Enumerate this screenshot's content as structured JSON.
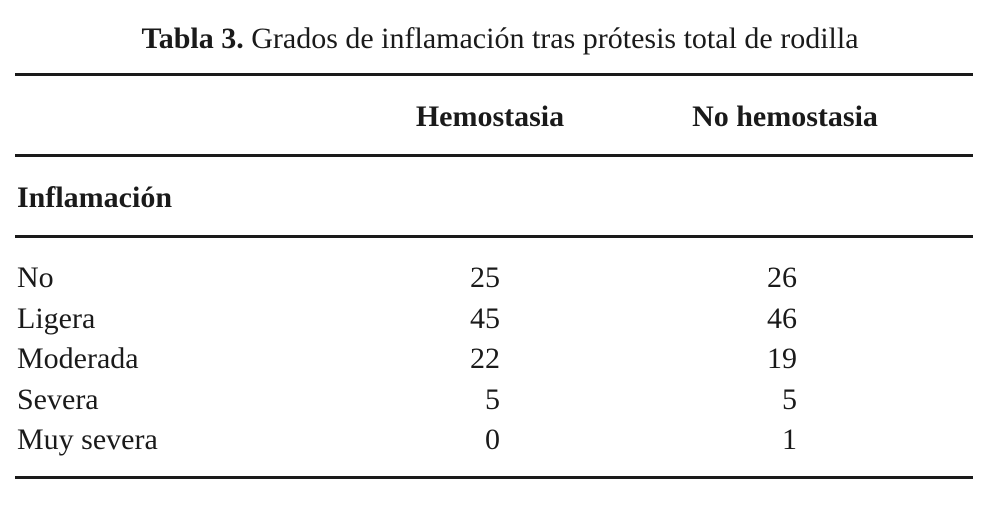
{
  "title": {
    "label": "Tabla 3.",
    "text": "Grados de inflamación tras prótesis total de rodilla"
  },
  "table": {
    "columns": [
      "Hemostasia",
      "No hemostasia"
    ],
    "section": "Inflamación",
    "rows": [
      [
        "No",
        25,
        26
      ],
      [
        "Ligera",
        45,
        46
      ],
      [
        "Moderada",
        22,
        19
      ],
      [
        "Severa",
        5,
        5
      ],
      [
        "Muy severa",
        0,
        1
      ]
    ]
  }
}
